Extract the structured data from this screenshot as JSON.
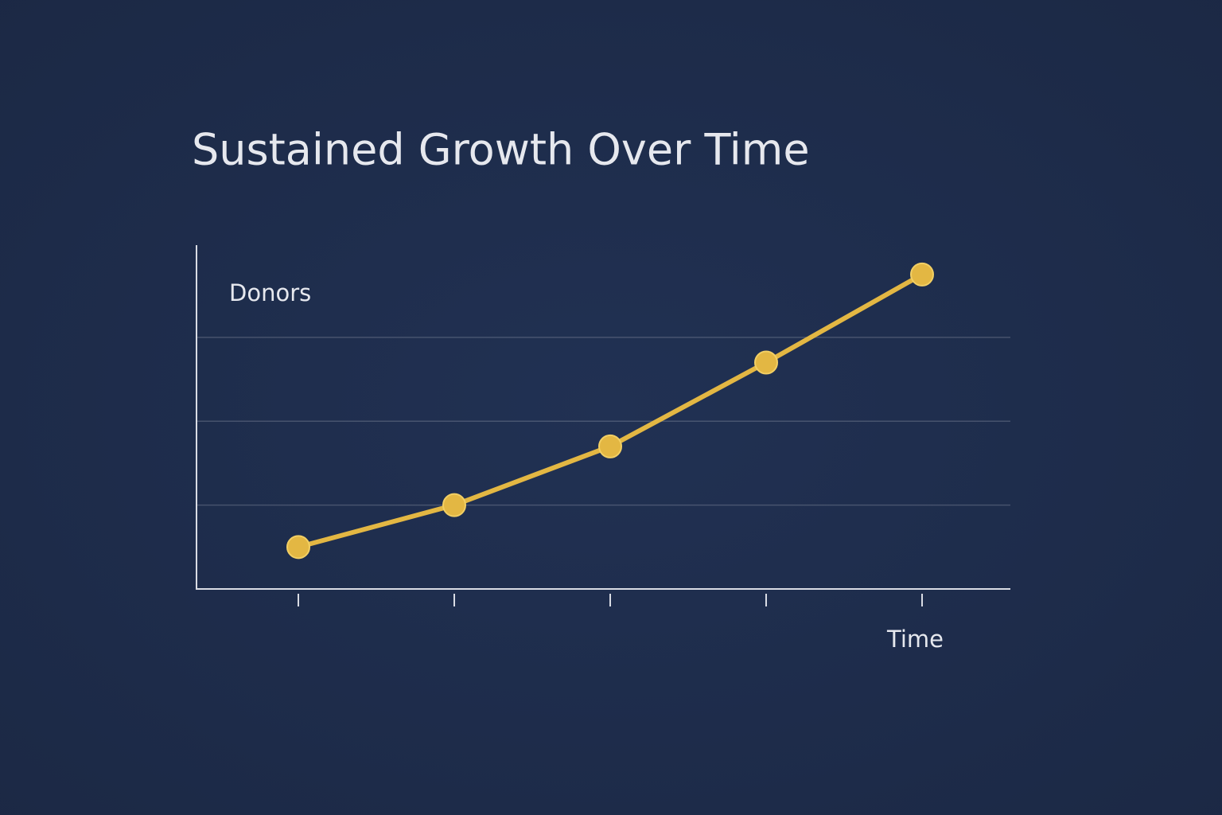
{
  "chart_data": {
    "type": "line",
    "title": "Sustained Growth Over Time",
    "y_label": "Donors",
    "x_label": "Time",
    "categories": [
      null,
      null,
      null,
      null,
      null
    ],
    "values": [
      0.5,
      1.0,
      1.7,
      2.7,
      3.75
    ],
    "color": "#e3b743",
    "ylim": [
      0,
      4.1
    ],
    "yticks": [
      1,
      2,
      3
    ],
    "grid": true
  }
}
